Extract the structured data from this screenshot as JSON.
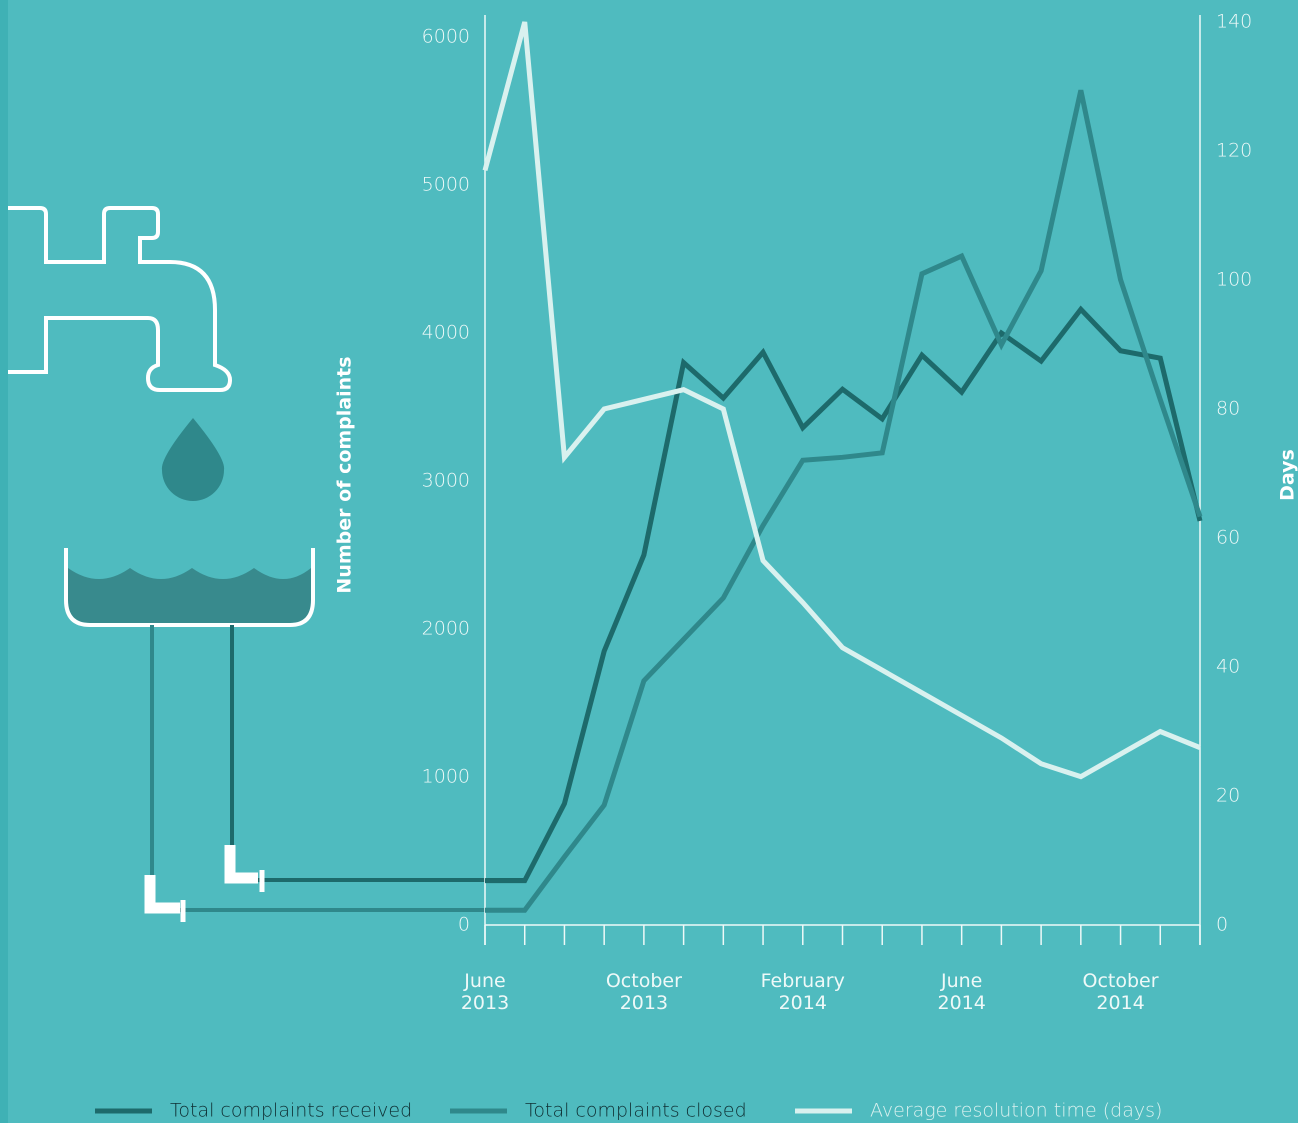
{
  "chart_data": {
    "type": "line",
    "categories": [
      "June 2013",
      null,
      null,
      null,
      "October 2013",
      null,
      null,
      null,
      "February 2014",
      null,
      null,
      null,
      "June 2014",
      null,
      null,
      null,
      "October 2014",
      null,
      null
    ],
    "y_label": "Number of complaints",
    "y2_label": "Days",
    "ylim": [
      0,
      6000
    ],
    "yticks": [
      0,
      1000,
      2000,
      3000,
      4000,
      5000,
      6000
    ],
    "y2lim": [
      0,
      140
    ],
    "y2ticks": [
      0,
      20,
      40,
      60,
      80,
      100,
      120,
      140
    ],
    "series": [
      {
        "name": "Total complaints received",
        "color": "#1d6a6b",
        "values": [
          300,
          300,
          820,
          1850,
          2500,
          3800,
          3560,
          3870,
          3360,
          3620,
          3420,
          3850,
          3600,
          4000,
          3810,
          4160,
          3880,
          3830,
          2730
        ]
      },
      {
        "name": "Total complaints closed",
        "color": "#2f888b",
        "values": [
          100,
          100,
          460,
          810,
          1650,
          1930,
          2210,
          2700,
          3140,
          3160,
          3190,
          4400,
          4520,
          3920,
          4420,
          5640,
          4360,
          3550,
          2760
        ]
      },
      {
        "name": "Average resolution time (days)",
        "color": "#d9f1ef",
        "axis": "y2",
        "values": [
          117,
          140,
          72.5,
          80,
          81.5,
          83,
          80,
          56.5,
          50,
          43,
          39.5,
          36,
          32.5,
          29,
          25,
          23,
          26.5,
          30,
          27.5
        ]
      }
    ]
  }
}
